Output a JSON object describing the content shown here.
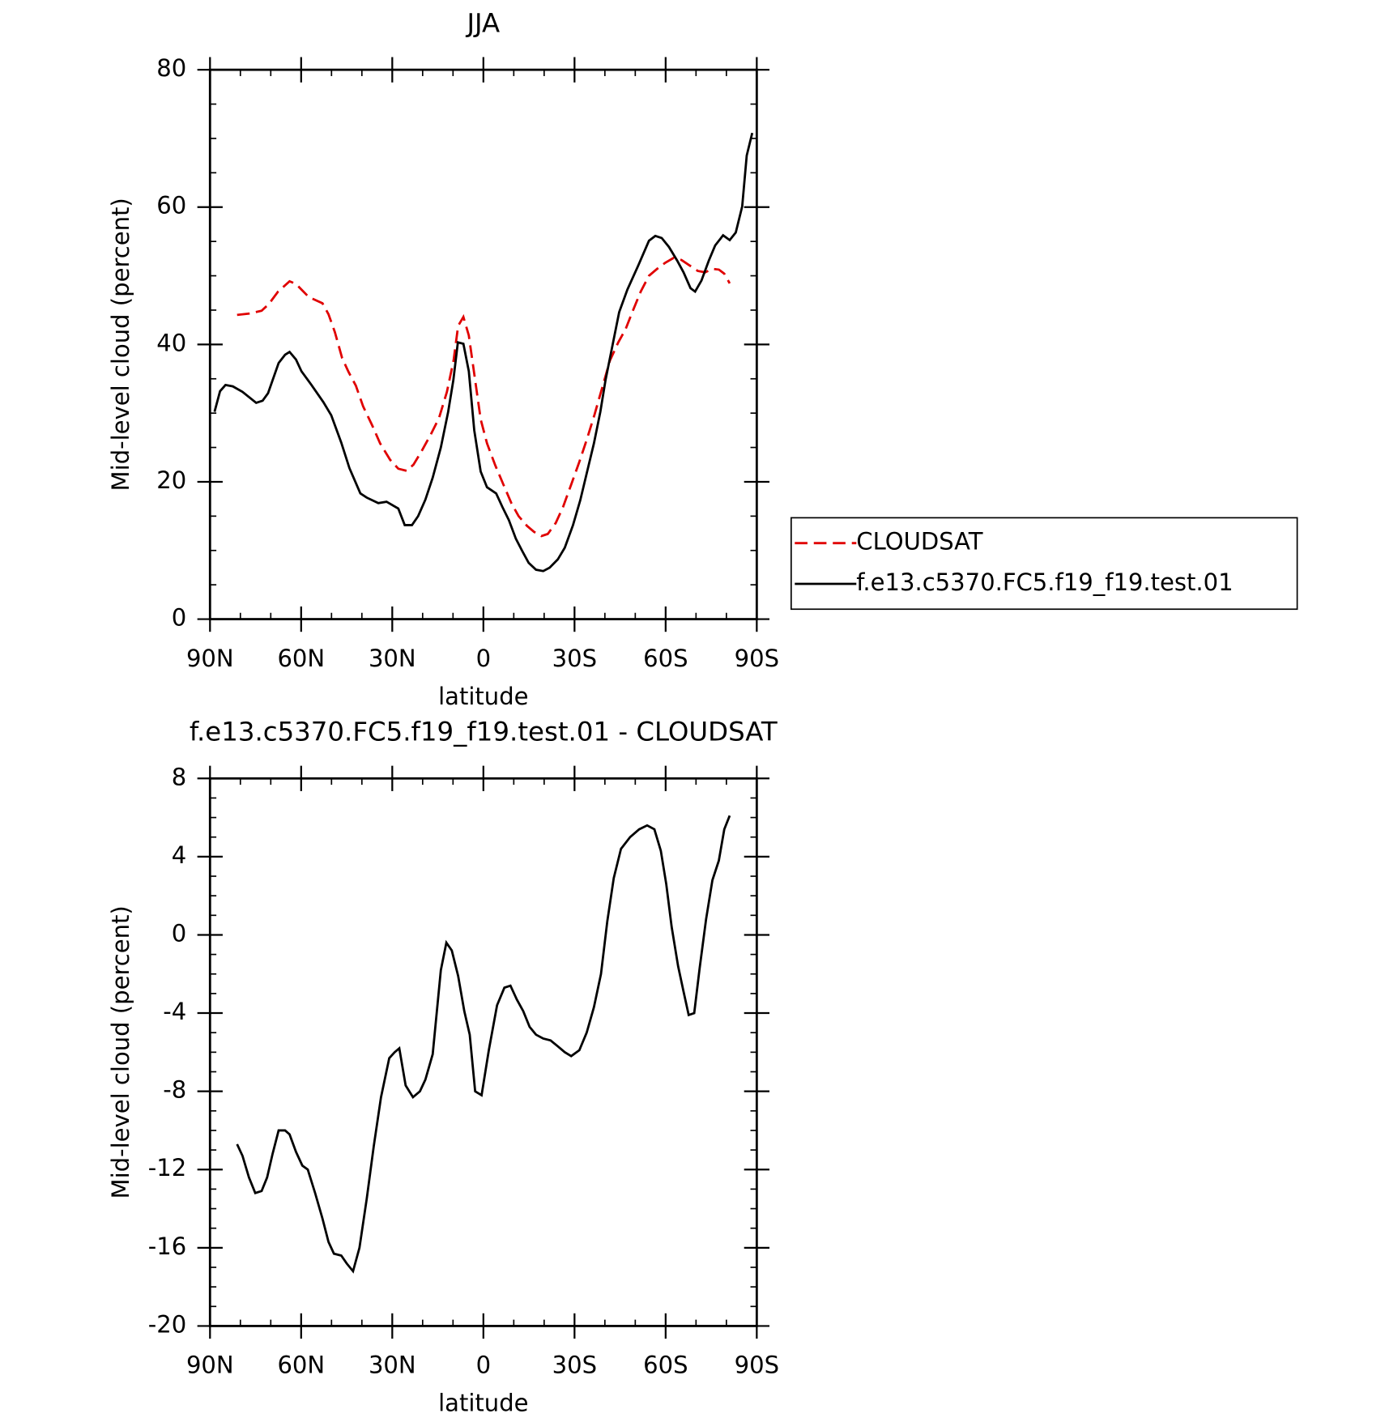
{
  "chart_data": [
    {
      "type": "line",
      "title": "JJA",
      "xlabel": "latitude",
      "ylabel": "Mid-level cloud (percent)",
      "xlim": [
        90,
        -90
      ],
      "xticks": [
        {
          "value": 90,
          "label": "90N"
        },
        {
          "value": 60,
          "label": "60N"
        },
        {
          "value": 30,
          "label": "30N"
        },
        0,
        {
          "value": -30,
          "label": "30S"
        },
        {
          "value": -60,
          "label": "60S"
        },
        {
          "value": -90,
          "label": "90S"
        }
      ],
      "ylim": [
        0,
        80
      ],
      "yticks": [
        0,
        20,
        40,
        60,
        80
      ],
      "legend": "right",
      "series": [
        {
          "name": "CLOUDSAT",
          "color": "#e00000",
          "line_style": "dashed",
          "x": [
            81.1,
            77.2,
            73.0,
            70.6,
            67.6,
            63.8,
            61.7,
            57.5,
            53.0,
            51.0,
            48.9,
            46.5,
            44.4,
            42.0,
            39.6,
            36.6,
            34.0,
            30.7,
            28.0,
            25.3,
            23.0,
            20.3,
            17.3,
            14.6,
            12.0,
            9.8,
            8.3,
            6.6,
            4.8,
            2.7,
            0.9,
            -1.2,
            -3.9,
            -6.6,
            -9.2,
            -11.6,
            -14.3,
            -16.7,
            -19.1,
            -21.2,
            -23.8,
            -26.2,
            -28.9,
            -31.6,
            -34.0,
            -36.6,
            -39.3,
            -41.7,
            -44.4,
            -46.8,
            -49.2,
            -51.8,
            -54.5,
            -57.2,
            -59.9,
            -62.6,
            -65.2,
            -67.9,
            -70.6,
            -73.0,
            -75.4,
            -77.5,
            -79.3,
            -81.1
          ],
          "values": [
            44.3,
            44.5,
            44.9,
            45.9,
            47.7,
            49.2,
            48.8,
            46.9,
            46.0,
            44.4,
            41.8,
            38.0,
            36.0,
            34.0,
            31.0,
            28.2,
            25.6,
            23.2,
            21.9,
            21.6,
            22.5,
            24.5,
            26.9,
            29.3,
            33.1,
            37.7,
            42.7,
            44.0,
            41.3,
            34.8,
            29.1,
            25.6,
            22.4,
            19.6,
            16.9,
            15.0,
            13.6,
            12.7,
            12.1,
            12.4,
            14.0,
            16.3,
            19.6,
            22.9,
            26.1,
            29.8,
            34.0,
            37.7,
            40.3,
            42.2,
            44.9,
            47.7,
            50.0,
            51.0,
            51.9,
            52.6,
            52.3,
            51.5,
            50.7,
            50.5,
            51.0,
            50.9,
            50.3,
            48.9
          ]
        },
        {
          "name": "f.e13.c5370.FC5.f19_f19.test.01",
          "color": "#000000",
          "line_style": "solid",
          "x": [
            88.5,
            86.7,
            84.9,
            82.5,
            79.3,
            74.8,
            72.7,
            70.9,
            67.4,
            65.3,
            63.8,
            61.7,
            59.9,
            56.6,
            52.7,
            50.1,
            46.8,
            44.1,
            40.5,
            38.4,
            34.6,
            31.9,
            28.0,
            25.9,
            23.5,
            21.5,
            19.1,
            16.7,
            14.0,
            11.6,
            9.9,
            8.4,
            6.6,
            4.8,
            3.0,
            0.9,
            -1.2,
            -4.2,
            -6.3,
            -8.4,
            -10.7,
            -12.8,
            -14.9,
            -17.3,
            -19.7,
            -21.8,
            -24.5,
            -26.8,
            -29.5,
            -31.9,
            -34.0,
            -36.4,
            -38.5,
            -40.2,
            -42.3,
            -44.7,
            -47.4,
            -51.0,
            -54.5,
            -56.6,
            -58.7,
            -61.1,
            -63.8,
            -65.9,
            -68.2,
            -69.7,
            -71.8,
            -74.2,
            -76.3,
            -78.9,
            -81.1,
            -83.1,
            -85.2,
            -86.7,
            -88.5
          ],
          "values": [
            30.2,
            33.2,
            34.1,
            33.9,
            33.1,
            31.5,
            31.8,
            32.9,
            37.3,
            38.5,
            38.9,
            37.8,
            36.1,
            34.1,
            31.6,
            29.7,
            25.7,
            22.0,
            18.3,
            17.7,
            16.9,
            17.1,
            16.1,
            13.7,
            13.7,
            15.0,
            17.4,
            20.6,
            25.0,
            30.2,
            34.8,
            40.3,
            40.1,
            36.1,
            27.5,
            21.5,
            19.2,
            18.3,
            16.3,
            14.4,
            11.7,
            9.9,
            8.2,
            7.2,
            7.0,
            7.5,
            8.7,
            10.4,
            13.7,
            17.3,
            21.2,
            25.6,
            30.2,
            34.8,
            39.4,
            44.7,
            48.0,
            51.5,
            55.1,
            55.8,
            55.5,
            54.2,
            52.2,
            50.5,
            48.2,
            47.7,
            49.3,
            52.2,
            54.4,
            55.9,
            55.2,
            56.3,
            60.1,
            67.5,
            70.8
          ]
        }
      ]
    },
    {
      "type": "line",
      "title": "f.e13.c5370.FC5.f19_f19.test.01 - CLOUDSAT",
      "xlabel": "latitude",
      "ylabel": "Mid-level cloud (percent)",
      "xlim": [
        90,
        -90
      ],
      "xticks": [
        {
          "value": 90,
          "label": "90N"
        },
        {
          "value": 60,
          "label": "60N"
        },
        {
          "value": 30,
          "label": "30N"
        },
        0,
        {
          "value": -30,
          "label": "30S"
        },
        {
          "value": -60,
          "label": "60S"
        },
        {
          "value": -90,
          "label": "90S"
        }
      ],
      "ylim": [
        -20,
        8
      ],
      "yticks": [
        -20,
        -16,
        -12,
        -8,
        -4,
        0,
        4,
        8
      ],
      "series": [
        {
          "color": "#000000",
          "line_style": "solid",
          "x": [
            81.1,
            79.3,
            77.2,
            75.1,
            73.0,
            71.2,
            69.4,
            67.4,
            65.3,
            63.8,
            61.7,
            59.6,
            57.8,
            55.4,
            53.0,
            51.0,
            49.2,
            46.8,
            45.0,
            42.9,
            40.8,
            38.4,
            36.1,
            33.7,
            31.0,
            29.2,
            27.7,
            25.6,
            23.2,
            20.9,
            19.1,
            16.7,
            14.0,
            12.2,
            10.4,
            8.3,
            6.3,
            4.5,
            2.7,
            0.6,
            -1.8,
            -4.5,
            -6.9,
            -8.9,
            -11.0,
            -13.1,
            -15.2,
            -17.3,
            -19.7,
            -22.1,
            -24.5,
            -26.8,
            -28.9,
            -31.6,
            -34.0,
            -36.4,
            -38.7,
            -40.8,
            -42.9,
            -45.3,
            -48.3,
            -51.3,
            -53.9,
            -56.3,
            -58.4,
            -60.2,
            -62.0,
            -64.1,
            -65.9,
            -67.6,
            -69.4,
            -71.2,
            -73.3,
            -75.4,
            -77.5,
            -79.3,
            -81.1
          ],
          "values": [
            -10.7,
            -11.3,
            -12.4,
            -13.2,
            -13.1,
            -12.4,
            -11.2,
            -10.0,
            -10.0,
            -10.2,
            -11.1,
            -11.8,
            -12.0,
            -13.2,
            -14.5,
            -15.7,
            -16.3,
            -16.4,
            -16.8,
            -17.2,
            -16.0,
            -13.5,
            -10.8,
            -8.3,
            -6.3,
            -6.0,
            -5.8,
            -7.7,
            -8.3,
            -8.0,
            -7.4,
            -6.1,
            -1.8,
            -0.4,
            -0.8,
            -2.1,
            -3.9,
            -5.1,
            -8.0,
            -8.2,
            -5.9,
            -3.6,
            -2.7,
            -2.6,
            -3.3,
            -3.9,
            -4.7,
            -5.1,
            -5.3,
            -5.4,
            -5.7,
            -6.0,
            -6.2,
            -5.9,
            -5.0,
            -3.7,
            -2.0,
            0.7,
            2.9,
            4.4,
            5.0,
            5.4,
            5.6,
            5.4,
            4.3,
            2.6,
            0.4,
            -1.6,
            -2.9,
            -4.1,
            -4.0,
            -1.7,
            0.8,
            2.8,
            3.8,
            5.4,
            6.1
          ]
        }
      ]
    }
  ]
}
